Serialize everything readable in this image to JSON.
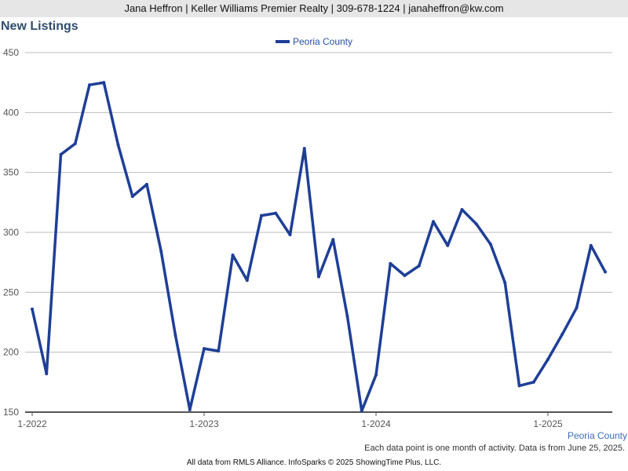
{
  "header": {
    "agent_line": "Jana Heffron | Keller Williams Premier Realty | 309-678-1224 | janaheffron@kw.com"
  },
  "colors": {
    "series": "#1f3f96",
    "grid": "#bdbdbd",
    "axis": "#555555",
    "title": "#2f4d6d"
  },
  "chart_data": {
    "type": "line",
    "title": "New Listings",
    "xlabel": "",
    "ylabel": "",
    "ylim": [
      150,
      450
    ],
    "yticks": [
      150,
      200,
      250,
      300,
      350,
      400,
      450
    ],
    "xtick_labels": [
      "1-2022",
      "1-2023",
      "1-2024",
      "1-2025"
    ],
    "grid": true,
    "legend_position": "top-center",
    "x": [
      "2022-01",
      "2022-02",
      "2022-03",
      "2022-04",
      "2022-05",
      "2022-06",
      "2022-07",
      "2022-08",
      "2022-09",
      "2022-10",
      "2022-11",
      "2022-12",
      "2023-01",
      "2023-02",
      "2023-03",
      "2023-04",
      "2023-05",
      "2023-06",
      "2023-07",
      "2023-08",
      "2023-09",
      "2023-10",
      "2023-11",
      "2023-12",
      "2024-01",
      "2024-02",
      "2024-03",
      "2024-04",
      "2024-05",
      "2024-06",
      "2024-07",
      "2024-08",
      "2024-09",
      "2024-10",
      "2024-11",
      "2024-12",
      "2025-01",
      "2025-02",
      "2025-03",
      "2025-04",
      "2025-05"
    ],
    "series": [
      {
        "name": "Peoria County",
        "values": [
          236,
          182,
          365,
          374,
          423,
          425,
          373,
          330,
          340,
          284,
          214,
          152,
          203,
          201,
          281,
          260,
          314,
          316,
          298,
          370,
          263,
          294,
          230,
          151,
          181,
          274,
          264,
          272,
          309,
          289,
          319,
          307,
          290,
          258,
          172,
          175,
          194,
          215,
          237,
          289,
          267
        ]
      }
    ]
  },
  "series_tag": "Peoria County",
  "note": "Each data point is one month of activity. Data is from June 25, 2025.",
  "footer": "All data from RMLS Alliance. InfoSparks © 2025 ShowingTime Plus, LLC."
}
